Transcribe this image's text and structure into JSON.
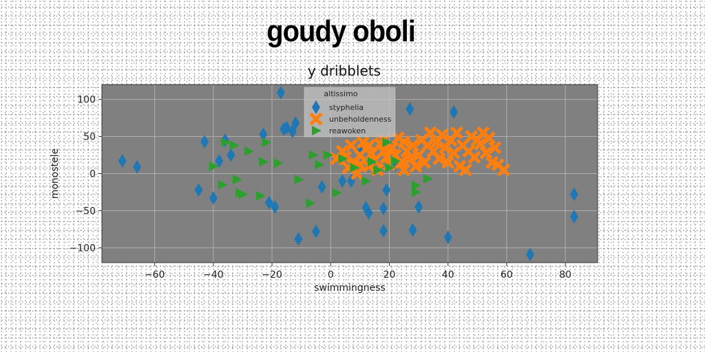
{
  "suptitle": "goudy oboli",
  "colors": {
    "plot_background": "#808080",
    "grid": "#b0b0b0",
    "styphelia": "#1f77b4",
    "unbeholdenness": "#ff7f0e",
    "reawoken": "#2ca02c"
  },
  "chart_data": {
    "type": "scatter",
    "title": "y dribblets",
    "xlabel": "swimmingness",
    "ylabel": "monostele",
    "xlim": [
      -78,
      91
    ],
    "ylim": [
      -120,
      120
    ],
    "xticks": [
      -60,
      -40,
      -20,
      0,
      20,
      40,
      60,
      80
    ],
    "yticks": [
      -100,
      -50,
      0,
      50,
      100
    ],
    "xtick_labels": [
      "−60",
      "−40",
      "−20",
      "0",
      "20",
      "40",
      "60",
      "80"
    ],
    "ytick_labels": [
      "−100",
      "−50",
      "0",
      "50",
      "100"
    ],
    "grid": true,
    "legend": {
      "title": "altissimo",
      "location": "upper-center"
    },
    "series": [
      {
        "name": "styphelia",
        "marker": "thin_diamond",
        "points": [
          [
            -71,
            17
          ],
          [
            -66,
            9
          ],
          [
            -45,
            -22
          ],
          [
            -43,
            43
          ],
          [
            -40,
            -33
          ],
          [
            -38,
            17
          ],
          [
            -36,
            45
          ],
          [
            -34,
            25
          ],
          [
            -23,
            53
          ],
          [
            -21,
            -39
          ],
          [
            -19,
            -45
          ],
          [
            -17,
            109
          ],
          [
            -16,
            60
          ],
          [
            -15,
            62
          ],
          [
            -13,
            57
          ],
          [
            -12,
            68
          ],
          [
            -11,
            -88
          ],
          [
            -5,
            -78
          ],
          [
            -3,
            -18
          ],
          [
            4,
            -10
          ],
          [
            7,
            -10
          ],
          [
            10,
            33
          ],
          [
            12,
            -46
          ],
          [
            13,
            -53
          ],
          [
            18,
            -47
          ],
          [
            18,
            -77
          ],
          [
            19,
            -22
          ],
          [
            22,
            12
          ],
          [
            27,
            87
          ],
          [
            28,
            -76
          ],
          [
            30,
            -45
          ],
          [
            40,
            -86
          ],
          [
            42,
            83
          ],
          [
            68,
            -109
          ],
          [
            83,
            -28
          ],
          [
            83,
            -58
          ]
        ]
      },
      {
        "name": "unbeholdenness",
        "marker": "x_filled",
        "points": [
          [
            2,
            20
          ],
          [
            4,
            30
          ],
          [
            5,
            22
          ],
          [
            6,
            8
          ],
          [
            7,
            38
          ],
          [
            8,
            15
          ],
          [
            9,
            0
          ],
          [
            10,
            25
          ],
          [
            11,
            42
          ],
          [
            12,
            33
          ],
          [
            13,
            10
          ],
          [
            13,
            38
          ],
          [
            14,
            27
          ],
          [
            15,
            18
          ],
          [
            16,
            5
          ],
          [
            17,
            40
          ],
          [
            18,
            30
          ],
          [
            19,
            22
          ],
          [
            20,
            12
          ],
          [
            21,
            35
          ],
          [
            22,
            25
          ],
          [
            23,
            48
          ],
          [
            24,
            15
          ],
          [
            25,
            43
          ],
          [
            26,
            30
          ],
          [
            27,
            20
          ],
          [
            28,
            38
          ],
          [
            29,
            10
          ],
          [
            30,
            25
          ],
          [
            31,
            45
          ],
          [
            32,
            15
          ],
          [
            34,
            55
          ],
          [
            35,
            30
          ],
          [
            36,
            42
          ],
          [
            37,
            20
          ],
          [
            38,
            52
          ],
          [
            39,
            35
          ],
          [
            40,
            15
          ],
          [
            41,
            45
          ],
          [
            42,
            28
          ],
          [
            43,
            55
          ],
          [
            44,
            10
          ],
          [
            45,
            38
          ],
          [
            46,
            5
          ],
          [
            47,
            30
          ],
          [
            48,
            50
          ],
          [
            49,
            22
          ],
          [
            50,
            45
          ],
          [
            51,
            40
          ],
          [
            52,
            55
          ],
          [
            53,
            28
          ],
          [
            54,
            48
          ],
          [
            55,
            15
          ],
          [
            56,
            35
          ],
          [
            57,
            12
          ],
          [
            59,
            5
          ],
          [
            25,
            5
          ],
          [
            18,
            45
          ],
          [
            10,
            12
          ],
          [
            33,
            38
          ]
        ]
      },
      {
        "name": "reawoken",
        "marker": "triangle_right",
        "points": [
          [
            -40,
            10
          ],
          [
            -37,
            -15
          ],
          [
            -36,
            42
          ],
          [
            -33,
            38
          ],
          [
            -32,
            -8
          ],
          [
            -31,
            -26
          ],
          [
            -30,
            -28
          ],
          [
            -28,
            30
          ],
          [
            -24,
            -30
          ],
          [
            -23,
            16
          ],
          [
            -22,
            42
          ],
          [
            -18,
            14
          ],
          [
            -11,
            -8
          ],
          [
            -7,
            -40
          ],
          [
            -6,
            25
          ],
          [
            -4,
            12
          ],
          [
            -1,
            25
          ],
          [
            2,
            -26
          ],
          [
            4,
            20
          ],
          [
            8,
            8
          ],
          [
            12,
            -10
          ],
          [
            14,
            16
          ],
          [
            16,
            5
          ],
          [
            19,
            42
          ],
          [
            20,
            8
          ],
          [
            22,
            17
          ],
          [
            29,
            -16
          ],
          [
            29,
            -25
          ],
          [
            33,
            -7
          ]
        ]
      }
    ]
  }
}
